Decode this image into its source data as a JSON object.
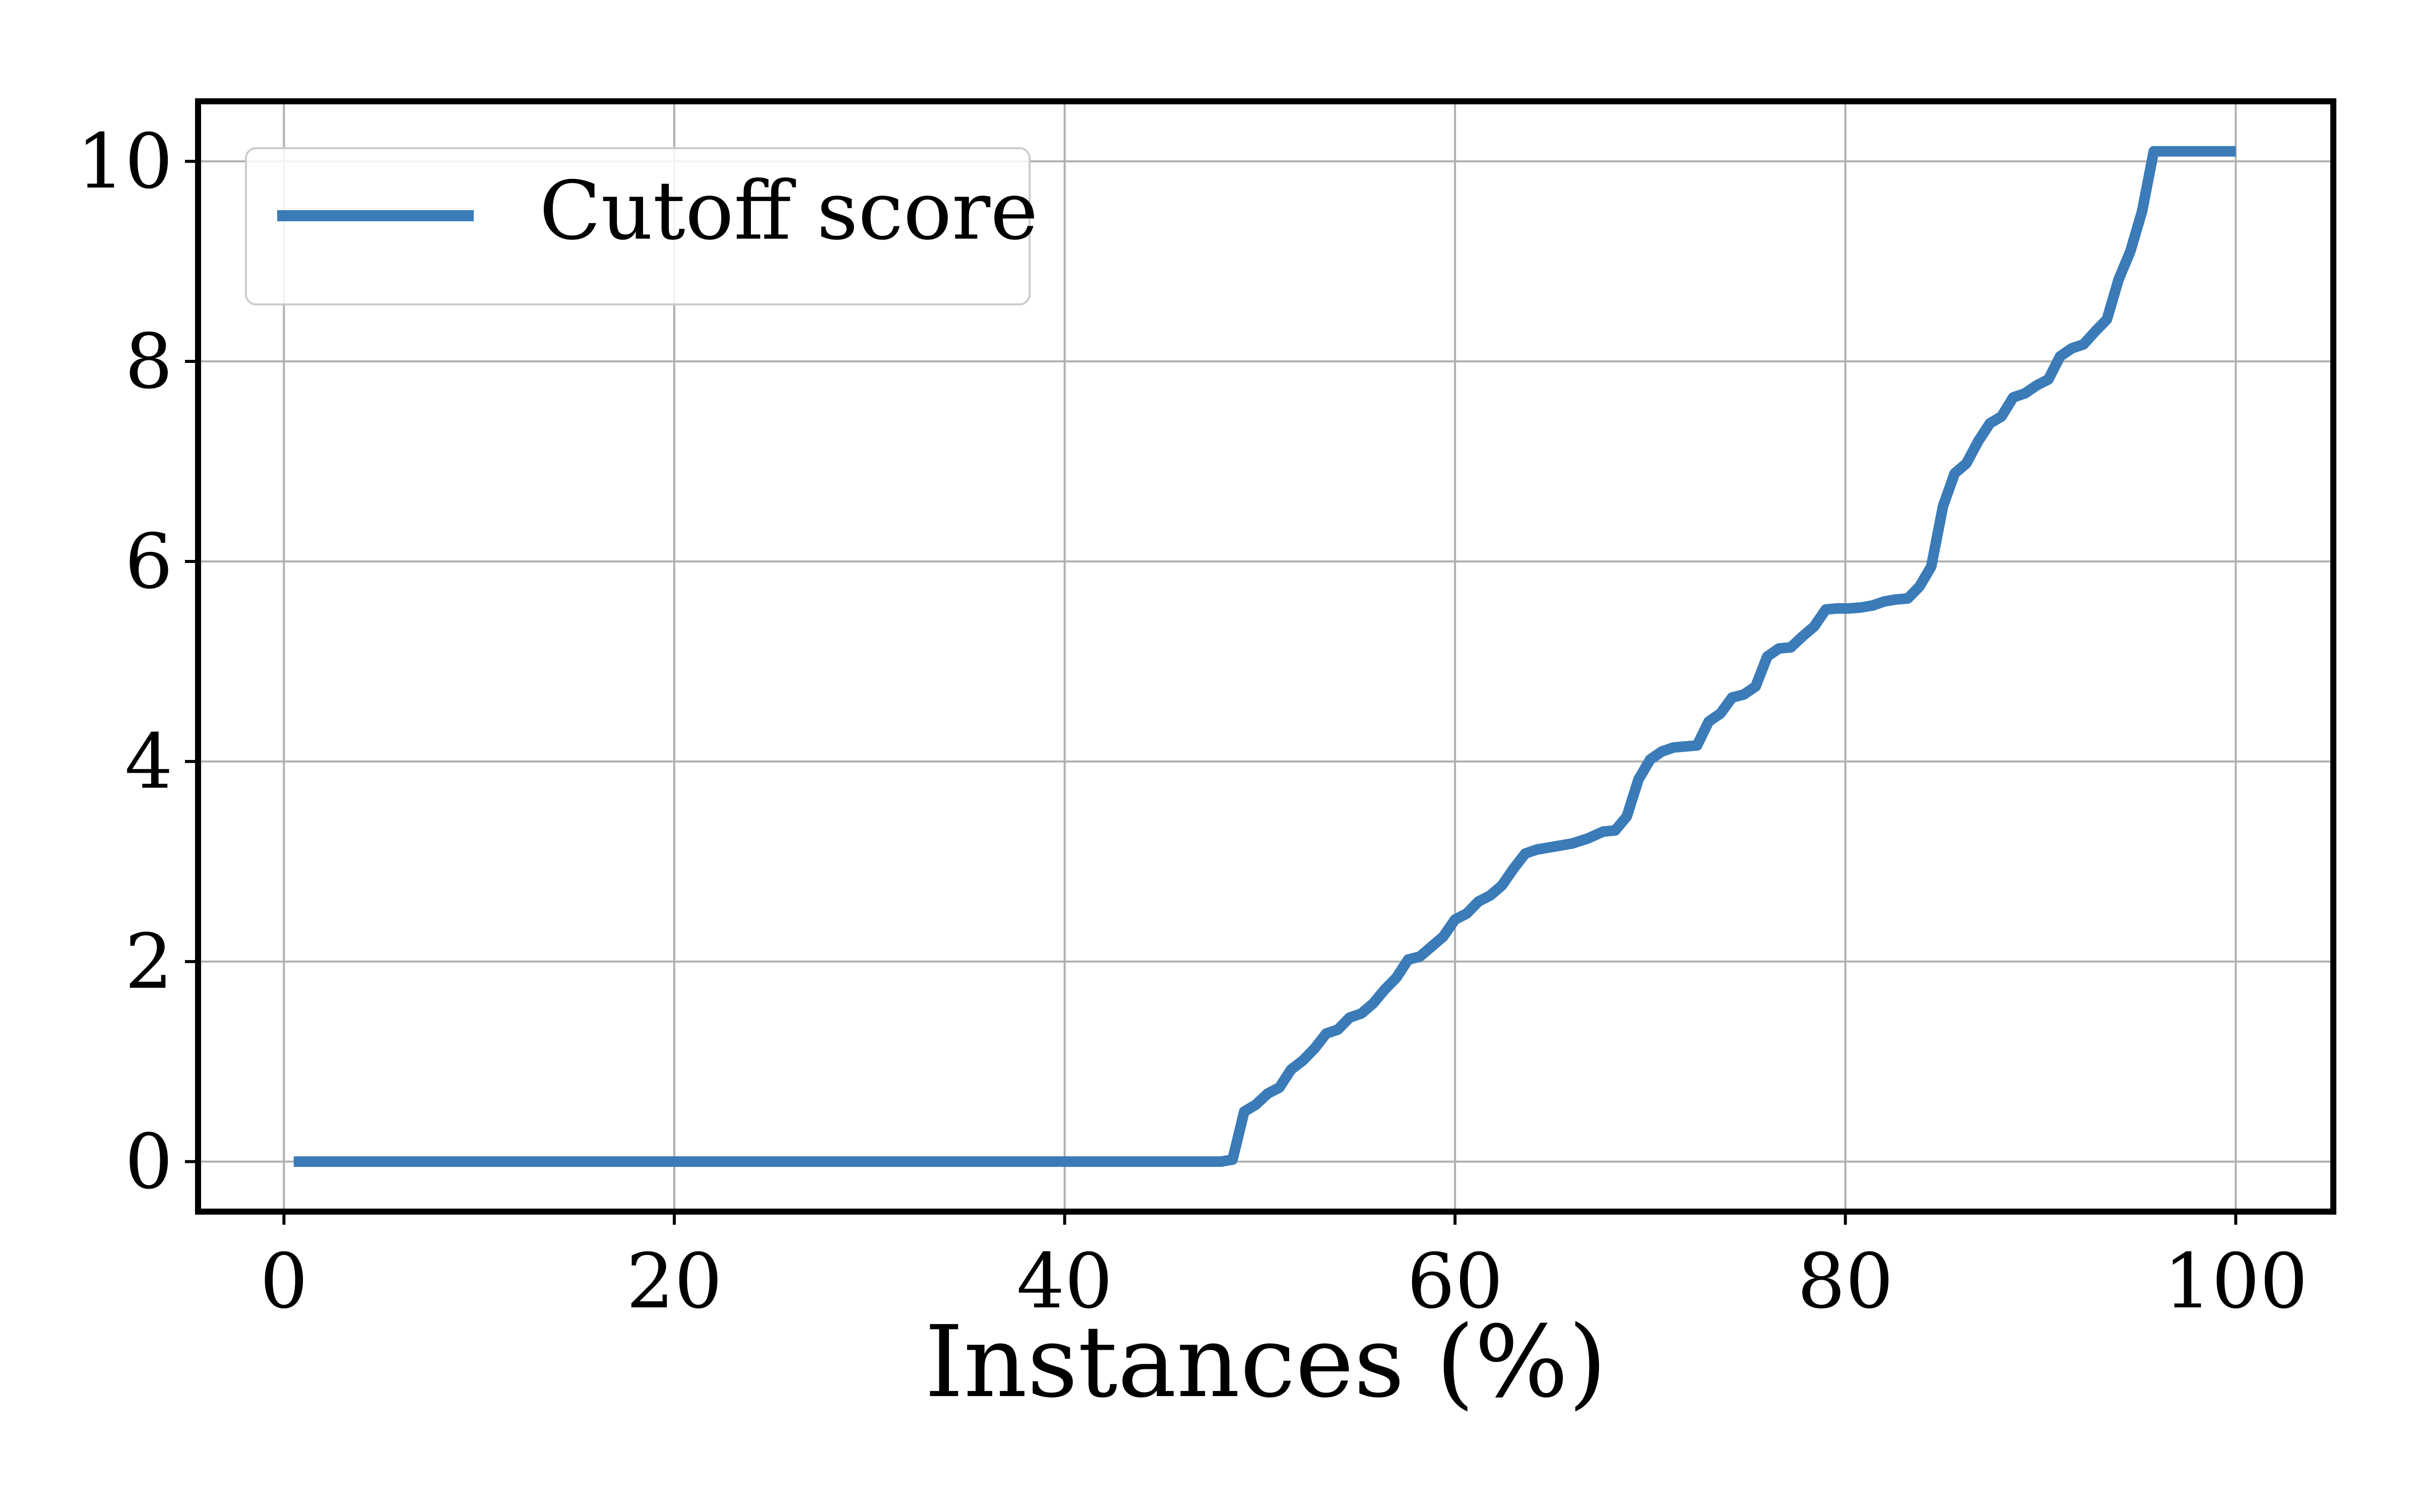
{
  "chart_data": {
    "type": "line",
    "title": "",
    "xlabel": "Instances (%)",
    "ylabel": "",
    "xlim": [
      -4.4,
      105
    ],
    "ylim": [
      -0.5,
      10.6
    ],
    "xticks": [
      0,
      20,
      40,
      60,
      80,
      100
    ],
    "yticks": [
      0,
      2,
      4,
      6,
      8,
      10
    ],
    "xtick_labels": [
      "0",
      "20",
      "40",
      "60",
      "80",
      "100"
    ],
    "ytick_labels": [
      "0",
      "2",
      "4",
      "6",
      "8",
      "10"
    ],
    "grid": true,
    "legend_position": "top-left",
    "series": [
      {
        "name": "Cutoff score",
        "color": "#3a7bb8",
        "x": [
          0.5,
          10,
          20,
          30,
          40,
          48,
          48.6,
          49.2,
          49.8,
          50.4,
          51.0,
          51.6,
          52.2,
          52.8,
          53.4,
          54.0,
          54.6,
          55.2,
          55.8,
          56.4,
          57.0,
          57.6,
          58.2,
          58.8,
          59.4,
          60.0,
          60.6,
          61.2,
          61.8,
          62.4,
          63.0,
          63.6,
          64.2,
          64.8,
          65.4,
          66.0,
          66.8,
          67.6,
          68.2,
          68.8,
          69.4,
          70.0,
          70.6,
          71.2,
          71.8,
          72.4,
          73.0,
          73.6,
          74.2,
          74.8,
          75.4,
          76.0,
          76.6,
          77.2,
          77.8,
          78.4,
          79.0,
          79.6,
          80.2,
          80.8,
          81.4,
          82.0,
          82.6,
          83.2,
          83.8,
          84.4,
          85.0,
          85.6,
          86.2,
          86.8,
          87.4,
          88.0,
          88.6,
          89.2,
          89.8,
          90.4,
          91.0,
          91.6,
          92.2,
          92.8,
          93.4,
          94.0,
          94.6,
          95.2,
          95.8,
          96.4,
          97.0,
          97.6,
          98.2,
          98.8,
          99.4,
          100.0
        ],
        "values": [
          0.0,
          0.0,
          0.0,
          0.0,
          0.0,
          0.0,
          0.02,
          0.5,
          0.57,
          0.68,
          0.74,
          0.92,
          1.01,
          1.13,
          1.28,
          1.32,
          1.44,
          1.48,
          1.58,
          1.72,
          1.84,
          2.02,
          2.05,
          2.15,
          2.25,
          2.42,
          2.48,
          2.6,
          2.66,
          2.76,
          2.93,
          3.08,
          3.12,
          3.14,
          3.16,
          3.18,
          3.23,
          3.3,
          3.31,
          3.45,
          3.82,
          4.02,
          4.1,
          4.14,
          4.15,
          4.16,
          4.4,
          4.48,
          4.64,
          4.67,
          4.75,
          5.05,
          5.13,
          5.14,
          5.25,
          5.35,
          5.52,
          5.53,
          5.53,
          5.54,
          5.56,
          5.6,
          5.62,
          5.63,
          5.75,
          5.95,
          6.55,
          6.88,
          6.98,
          7.2,
          7.38,
          7.45,
          7.64,
          7.68,
          7.76,
          7.82,
          8.05,
          8.13,
          8.17,
          8.3,
          8.42,
          8.82,
          9.1,
          9.5,
          10.1,
          10.1,
          10.1,
          10.1,
          10.1,
          10.1,
          10.1,
          10.1
        ]
      }
    ]
  }
}
